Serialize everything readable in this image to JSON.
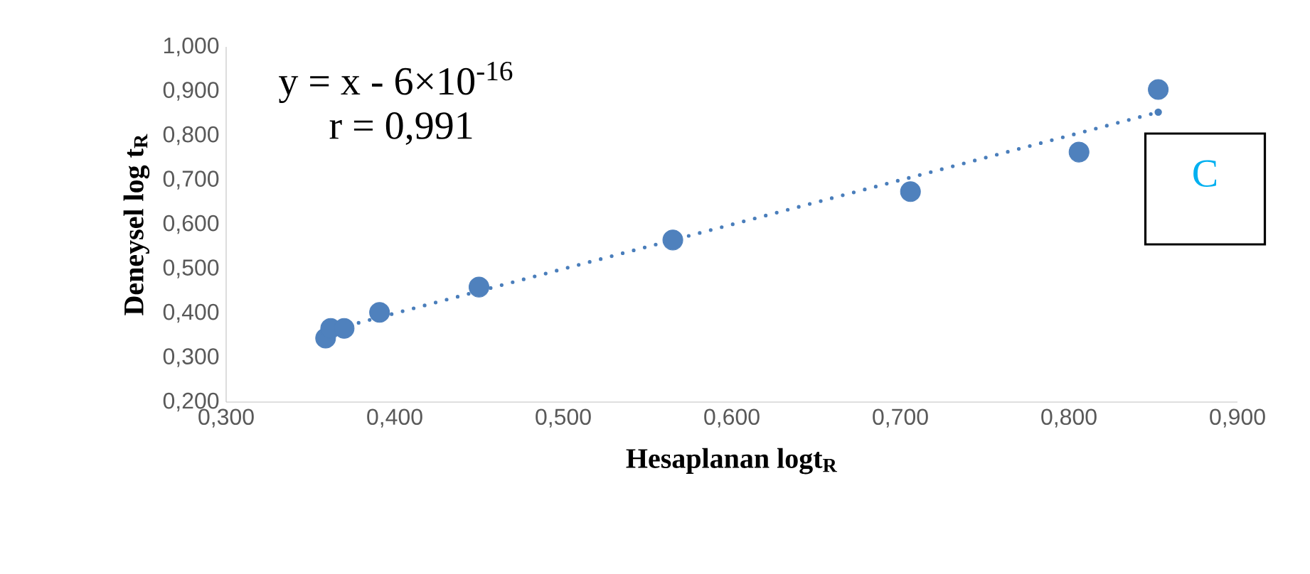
{
  "chart_data": {
    "type": "scatter",
    "xlabel": "**Hesaplanan logt$_{R}$**",
    "ylabel": "**Deneysel log t$_{R}$**",
    "xlim": [
      0.3,
      0.9
    ],
    "ylim": [
      0.2,
      1.0
    ],
    "xticks": [
      {
        "value": 0.3,
        "label": "0,300"
      },
      {
        "value": 0.4,
        "label": "0,400"
      },
      {
        "value": 0.5,
        "label": "0,500"
      },
      {
        "value": 0.6,
        "label": "0,600"
      },
      {
        "value": 0.7,
        "label": "0,700"
      },
      {
        "value": 0.8,
        "label": "0,800"
      },
      {
        "value": 0.9,
        "label": "0,900"
      }
    ],
    "yticks": [
      {
        "value": 0.2,
        "label": "0,200"
      },
      {
        "value": 0.3,
        "label": "0,300"
      },
      {
        "value": 0.4,
        "label": "0,400"
      },
      {
        "value": 0.5,
        "label": "0,500"
      },
      {
        "value": 0.6,
        "label": "0,600"
      },
      {
        "value": 0.7,
        "label": "0,700"
      },
      {
        "value": 0.8,
        "label": "0,800"
      },
      {
        "value": 0.9,
        "label": "0,900"
      },
      {
        "value": 1.0,
        "label": "1,000"
      }
    ],
    "series": [
      {
        "color": "#4f81bd",
        "marker": "circle",
        "x": [
          0.359,
          0.362,
          0.37,
          0.391,
          0.45,
          0.565,
          0.706,
          0.806,
          0.853
        ],
        "values": [
          0.344,
          0.366,
          0.366,
          0.402,
          0.459,
          0.565,
          0.674,
          0.763,
          0.904
        ]
      },
      {
        "type": "line",
        "color": "#4a7ebb",
        "line_style": "dotted",
        "marker": "none",
        "x": [
          0.359,
          0.853
        ],
        "values": [
          0.359,
          0.853
        ]
      }
    ],
    "annotations": [
      "y = x - 6×10$^{-16}$",
      "r = 0,991",
      "C"
    ]
  }
}
